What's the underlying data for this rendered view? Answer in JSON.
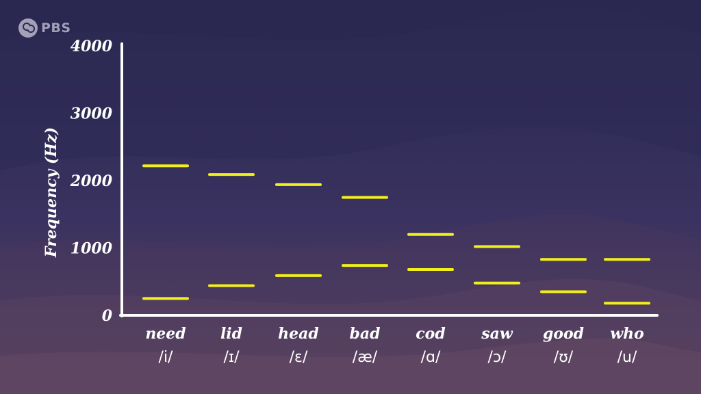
{
  "logo": {
    "text": "PBS",
    "icon": "pbs-head-icon"
  },
  "colors": {
    "accent": "#f2f01a",
    "axis": "#ffffff"
  },
  "chart_data": {
    "type": "bar",
    "title": "",
    "xlabel": "",
    "ylabel": "Frequency (Hz)",
    "ylim": [
      0,
      4000
    ],
    "yticks": [
      0,
      1000,
      2000,
      3000,
      4000
    ],
    "yticklabels": [
      "0",
      "1000",
      "2000",
      "3000",
      "4000"
    ],
    "grid": false,
    "categories": [
      "need",
      "lid",
      "head",
      "bad",
      "cod",
      "saw",
      "good",
      "who"
    ],
    "phonemes": [
      "/i/",
      "/ɪ/",
      "/ɛ/",
      "/æ/",
      "/ɑ/",
      "/ɔ/",
      "/ʊ/",
      "/u/"
    ],
    "series": [
      {
        "values": [
          250,
          440,
          590,
          740,
          680,
          480,
          350,
          180
        ]
      },
      {
        "values": [
          2220,
          2090,
          1940,
          1750,
          1200,
          1020,
          830,
          830
        ]
      }
    ]
  }
}
